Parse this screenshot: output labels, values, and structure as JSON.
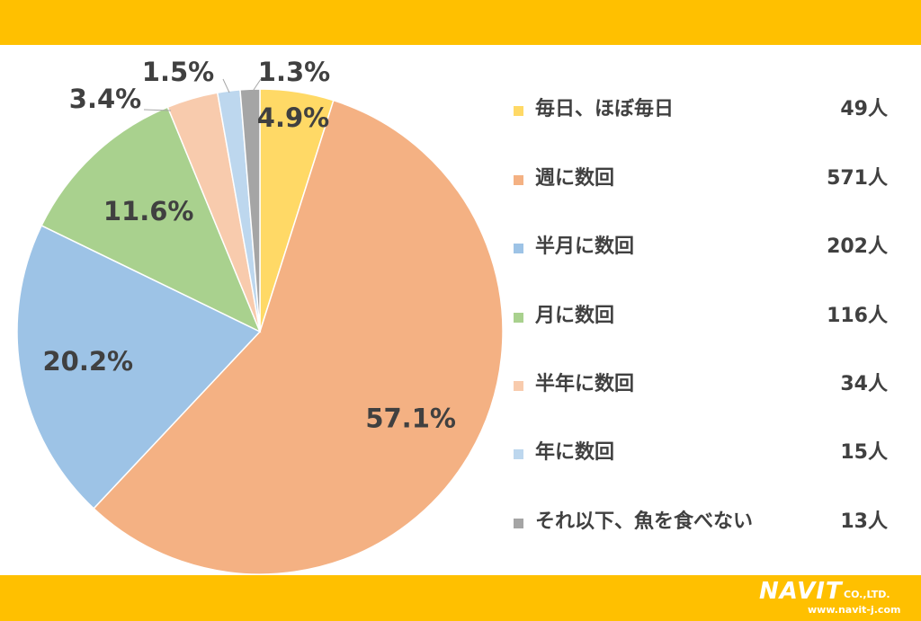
{
  "chart_data": {
    "type": "pie",
    "categories": [
      "毎日、ほぼ毎日",
      "週に数回",
      "半月に数回",
      "月に数回",
      "半年に数回",
      "年に数回",
      "それ以下、魚を食べない"
    ],
    "values": [
      4.9,
      57.1,
      20.2,
      11.6,
      3.4,
      1.5,
      1.3
    ],
    "value_labels": [
      "4.9%",
      "57.1%",
      "20.2%",
      "11.6%",
      "3.4%",
      "1.5%",
      "1.3%"
    ],
    "counts": [
      "49人",
      "571人",
      "202人",
      "116人",
      "34人",
      "15人",
      "13人"
    ],
    "colors": [
      "#FFD966",
      "#F4B183",
      "#9DC3E6",
      "#A9D18E",
      "#F8CBAD",
      "#BDD7EE",
      "#A5A5A5"
    ],
    "legend_position": "right",
    "start_angle": "top, clockwise"
  },
  "logo": {
    "name": "NAVIT",
    "suffix": "CO.,LTD.",
    "url": "www.navit-j.com"
  }
}
